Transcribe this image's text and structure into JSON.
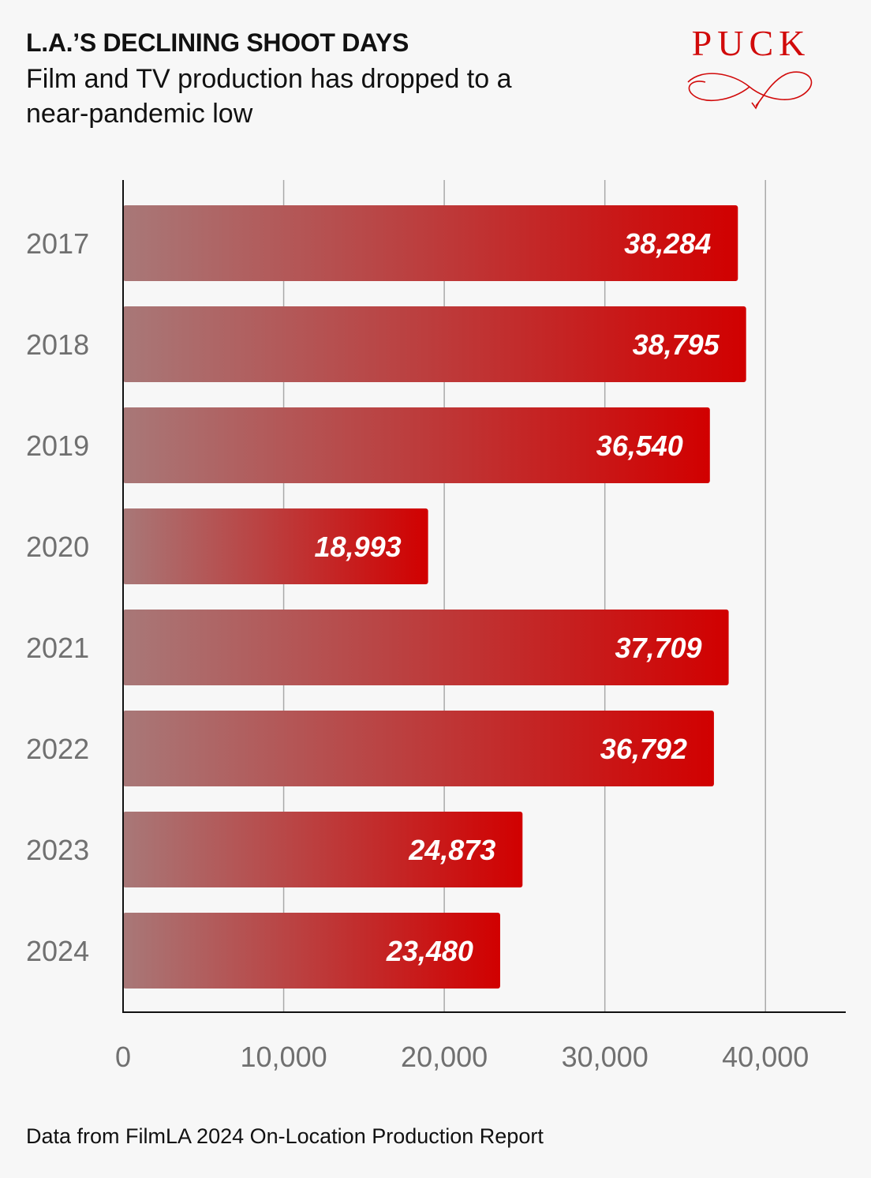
{
  "header": {
    "title": "L.A.’S DECLINING SHOOT DAYS",
    "subtitle": "Film and TV production has dropped to a near-pandemic low"
  },
  "brand": {
    "logo_text": "PUCK",
    "color": "#d10a0a"
  },
  "footer": {
    "source": "Data from FilmLA 2024 On-Location Production Report"
  },
  "chart_data": {
    "type": "bar",
    "orientation": "horizontal",
    "title": "L.A.’S DECLINING SHOOT DAYS",
    "subtitle": "Film and TV production has dropped to a near-pandemic low",
    "categories": [
      "2017",
      "2018",
      "2019",
      "2020",
      "2021",
      "2022",
      "2023",
      "2024"
    ],
    "values": [
      38284,
      38795,
      36540,
      18993,
      37709,
      36792,
      24873,
      23480
    ],
    "value_labels": [
      "38,284",
      "38,795",
      "36,540",
      "18,993",
      "37,709",
      "36,792",
      "24,873",
      "23,480"
    ],
    "xlim": [
      0,
      45000
    ],
    "xticks": [
      0,
      10000,
      20000,
      30000,
      40000
    ],
    "xtick_labels": [
      "0",
      "10,000",
      "20,000",
      "30,000",
      "40,000"
    ],
    "xlabel": "",
    "ylabel": "",
    "grid": true,
    "bar_color_start": "#a87878",
    "bar_color_end": "#d10000"
  }
}
